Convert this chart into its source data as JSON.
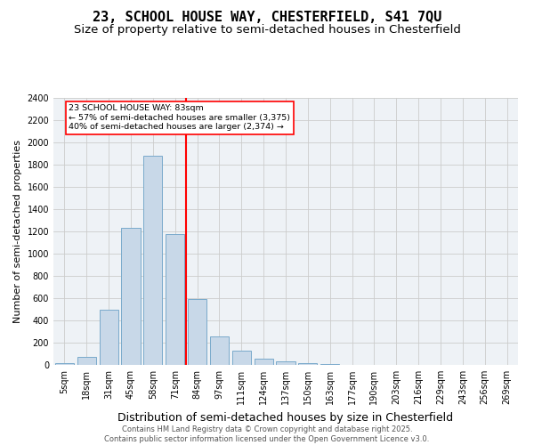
{
  "title1": "23, SCHOOL HOUSE WAY, CHESTERFIELD, S41 7QU",
  "title2": "Size of property relative to semi-detached houses in Chesterfield",
  "xlabel": "Distribution of semi-detached houses by size in Chesterfield",
  "ylabel": "Number of semi-detached properties",
  "categories": [
    "5sqm",
    "18sqm",
    "31sqm",
    "45sqm",
    "58sqm",
    "71sqm",
    "84sqm",
    "97sqm",
    "111sqm",
    "124sqm",
    "137sqm",
    "150sqm",
    "163sqm",
    "177sqm",
    "190sqm",
    "203sqm",
    "216sqm",
    "229sqm",
    "243sqm",
    "256sqm",
    "269sqm"
  ],
  "values": [
    15,
    75,
    500,
    1230,
    1880,
    1175,
    590,
    255,
    130,
    55,
    30,
    18,
    8,
    3,
    2,
    2,
    1,
    1,
    0,
    0,
    0
  ],
  "bar_color": "#c8d8e8",
  "bar_edge_color": "#7aaacb",
  "vline_color": "red",
  "annotation_text": "23 SCHOOL HOUSE WAY: 83sqm\n← 57% of semi-detached houses are smaller (3,375)\n40% of semi-detached houses are larger (2,374) →",
  "annotation_box_color": "white",
  "annotation_box_edge": "red",
  "vline_x_index": 6,
  "ylim": [
    0,
    2400
  ],
  "yticks": [
    0,
    200,
    400,
    600,
    800,
    1000,
    1200,
    1400,
    1600,
    1800,
    2000,
    2200,
    2400
  ],
  "grid_color": "#cccccc",
  "background_color": "#eef2f6",
  "footer": "Contains HM Land Registry data © Crown copyright and database right 2025.\nContains public sector information licensed under the Open Government Licence v3.0.",
  "title_fontsize": 11,
  "subtitle_fontsize": 9.5,
  "xlabel_fontsize": 9,
  "ylabel_fontsize": 8,
  "tick_fontsize": 7,
  "footer_fontsize": 6
}
